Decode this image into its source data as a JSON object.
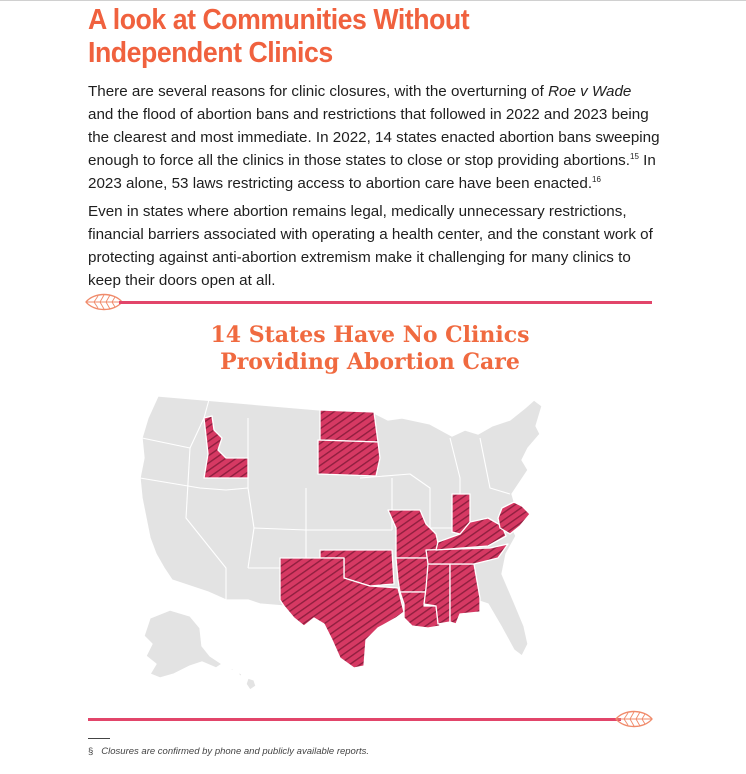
{
  "heading": "A look at Communities Without Independent Clinics",
  "paragraph1": {
    "lead": "There are several reasons for clinic closures, with the overturning of ",
    "case_name": "Roe v Wade",
    "mid": " and the flood of abortion bans and restrictions that followed in 2022 and 2023 being the clearest and most immediate. In 2022, 14 states enacted abortion bans sweeping enough to force all the clinics in those states to close or stop providing abortions.",
    "ref1": "15",
    "tail": " In 2023 alone, 53 laws restricting access to abortion care have been enacted.",
    "ref2": "16"
  },
  "paragraph2": "Even in states where abortion remains legal, medically unnecessary restrictions, financial barriers associated with operating a health center, and the constant work of protecting against anti-abortion extremism make it challenging for many clinics to keep their doors open at all.",
  "map": {
    "title_line1": "14 States Have No Clinics",
    "title_line2": "Providing Abortion Care",
    "highlight_color": "#d63963",
    "base_color": "#e3e3e3",
    "highlighted_states": [
      "Idaho",
      "North Dakota",
      "South Dakota",
      "Missouri",
      "Texas",
      "Oklahoma",
      "Arkansas",
      "Louisiana",
      "Mississippi",
      "Alabama",
      "Tennessee",
      "Kentucky",
      "Indiana",
      "West Virginia"
    ]
  },
  "accent_color": "#f0613e",
  "rule_color": "#e2456a",
  "footnote": {
    "mark": "§",
    "text": "Closures are confirmed by phone and publicly available reports."
  }
}
